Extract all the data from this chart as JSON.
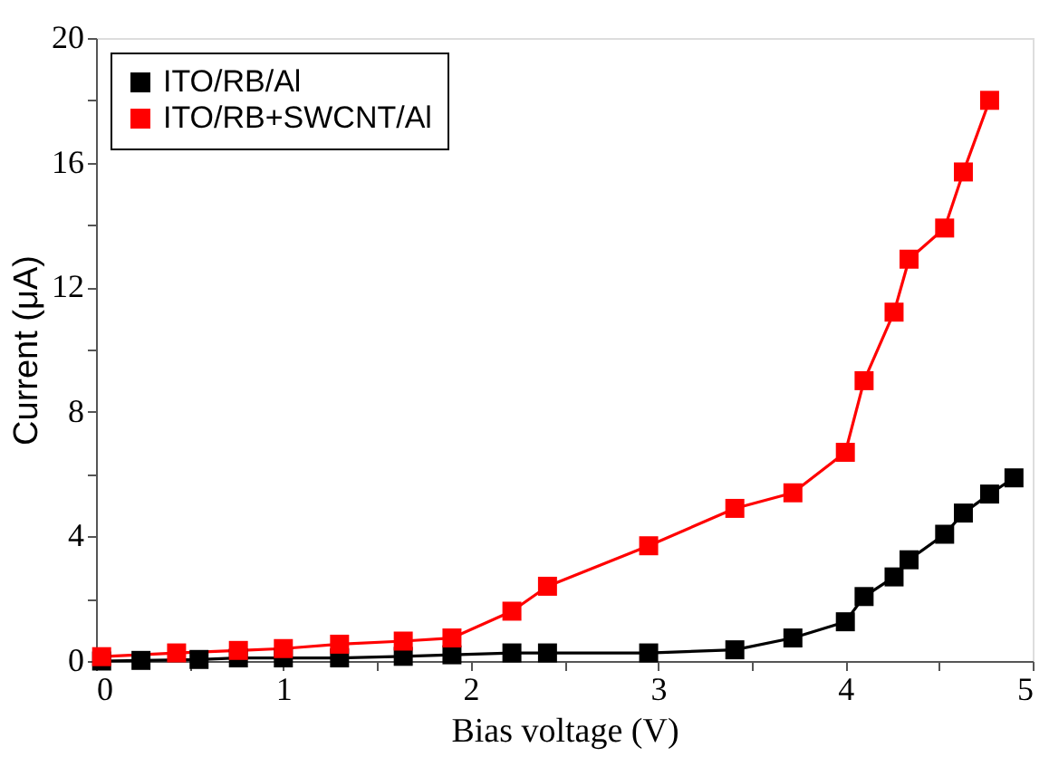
{
  "chart_data": {
    "type": "line",
    "xlabel": "Bias voltage (V)",
    "ylabel": "Current (μA)",
    "xlim": [
      0,
      5
    ],
    "ylim": [
      0,
      20
    ],
    "xticks": [
      0,
      {
        "value": 0.5,
        "label": null
      },
      1,
      {
        "value": 1.5,
        "label": null
      },
      2,
      {
        "value": 2.5,
        "label": null
      },
      3,
      {
        "value": 3.5,
        "label": null
      },
      4,
      {
        "value": 4.5,
        "label": null
      },
      5
    ],
    "yticks": [
      0,
      {
        "value": 2,
        "label": null
      },
      4,
      {
        "value": 6,
        "label": null
      },
      8,
      {
        "value": 10,
        "label": null
      },
      12,
      {
        "value": 14,
        "label": null
      },
      16,
      {
        "value": 18,
        "label": null
      },
      20
    ],
    "grid": false,
    "legend": "top left",
    "marker": "square",
    "line_style": "solid",
    "series": [
      {
        "name": "ITO/RB/Al",
        "color": "#000000",
        "x": [
          0.03,
          0.24,
          0.55,
          0.76,
          1.0,
          1.3,
          1.64,
          1.9,
          2.22,
          2.41,
          2.95,
          3.41,
          3.72,
          4.0,
          4.1,
          4.26,
          4.34,
          4.53,
          4.63,
          4.77,
          4.9
        ],
        "values": [
          0.0,
          0.02,
          0.05,
          0.1,
          0.1,
          0.1,
          0.15,
          0.2,
          0.26,
          0.26,
          0.26,
          0.36,
          0.74,
          1.26,
          2.07,
          2.7,
          3.25,
          4.07,
          4.75,
          5.36,
          5.88
        ]
      },
      {
        "name": "ITO/RB+SWCNT/Al",
        "color": "#ff0000",
        "x": [
          0.03,
          0.43,
          0.76,
          1.0,
          1.3,
          1.64,
          1.9,
          2.22,
          2.41,
          2.95,
          3.41,
          3.72,
          4.0,
          4.1,
          4.26,
          4.34,
          4.53,
          4.63,
          4.77
        ],
        "values": [
          0.14,
          0.26,
          0.34,
          0.4,
          0.54,
          0.64,
          0.74,
          1.6,
          2.4,
          3.7,
          4.9,
          5.4,
          6.7,
          9.0,
          11.2,
          12.9,
          13.9,
          15.7,
          18.0
        ]
      }
    ]
  }
}
